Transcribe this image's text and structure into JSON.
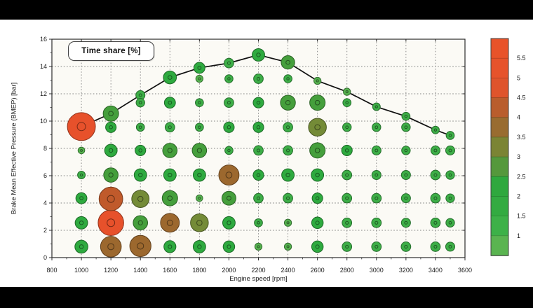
{
  "page": {
    "top_bar_color": "#000000",
    "bottom_bar_color": "#000000",
    "background": "#ffffff"
  },
  "chart_data": {
    "type": "scatter",
    "subtype": "bubble-map",
    "legend_label": "Time share [%]",
    "xlabel": "Engine speed [rpm]",
    "ylabel": "Brake Mean Effective Pressure (BMEP) [bar]",
    "xlim": [
      800,
      3600
    ],
    "ylim": [
      0,
      16
    ],
    "x_ticks": [
      800,
      1000,
      1200,
      1400,
      1600,
      1800,
      2000,
      2200,
      2400,
      2600,
      2800,
      3000,
      3200,
      3400,
      3600
    ],
    "y_ticks": [
      0,
      2,
      4,
      6,
      8,
      10,
      12,
      14,
      16
    ],
    "x_minor_step": 100,
    "y_minor_step": 1,
    "grid": {
      "style": "dotted",
      "color": "#818181"
    },
    "plot_bg": "#fbfaf5",
    "axis_color": "#2b2b2b",
    "value_unit": "%",
    "color_scale": [
      {
        "max": 1.2,
        "color": "#56b24f"
      },
      {
        "max": 1.8,
        "color": "#3dae47"
      },
      {
        "max": 2.4,
        "color": "#2eaa3f"
      },
      {
        "max": 2.95,
        "color": "#459f3c"
      },
      {
        "max": 3.5,
        "color": "#748b37"
      },
      {
        "max": 4.2,
        "color": "#9c682e"
      },
      {
        "max": 4.8,
        "color": "#c05a2b"
      },
      {
        "max": 99,
        "color": "#e7512b"
      }
    ],
    "full_load_line": {
      "color": "#101010",
      "points": [
        [
          1000,
          9.6
        ],
        [
          1200,
          10.55
        ],
        [
          1400,
          11.9
        ],
        [
          1600,
          13.2
        ],
        [
          1800,
          13.9
        ],
        [
          2000,
          14.25
        ],
        [
          2200,
          14.85
        ],
        [
          2400,
          14.3
        ],
        [
          2600,
          12.95
        ],
        [
          2800,
          12.15
        ],
        [
          3000,
          11.05
        ],
        [
          3200,
          10.35
        ],
        [
          3400,
          9.35
        ],
        [
          3500,
          8.95
        ]
      ]
    },
    "bubbles": [
      [
        1000,
        0.8,
        2.4
      ],
      [
        1000,
        2.55,
        2.3
      ],
      [
        1000,
        4.35,
        2.0
      ],
      [
        1000,
        6.05,
        1.3
      ],
      [
        1000,
        7.85,
        1.1
      ],
      [
        1000,
        9.6,
        5.5
      ],
      [
        1200,
        0.8,
        4.0
      ],
      [
        1200,
        2.55,
        5.0
      ],
      [
        1200,
        4.3,
        4.6
      ],
      [
        1200,
        6.05,
        2.7
      ],
      [
        1200,
        7.85,
        2.3
      ],
      [
        1200,
        9.55,
        1.9
      ],
      [
        1200,
        10.55,
        2.9
      ],
      [
        1400,
        0.85,
        4.1
      ],
      [
        1400,
        2.55,
        2.7
      ],
      [
        1400,
        4.3,
        3.3
      ],
      [
        1400,
        6.05,
        2.3
      ],
      [
        1400,
        7.85,
        1.9
      ],
      [
        1400,
        9.55,
        1.4
      ],
      [
        1400,
        11.35,
        1.5
      ],
      [
        1400,
        11.9,
        1.6
      ],
      [
        1600,
        0.8,
        2.2
      ],
      [
        1600,
        2.55,
        3.6
      ],
      [
        1600,
        4.35,
        2.9
      ],
      [
        1600,
        6.05,
        2.3
      ],
      [
        1600,
        7.85,
        2.7
      ],
      [
        1600,
        9.55,
        1.7
      ],
      [
        1600,
        11.35,
        2.0
      ],
      [
        1600,
        13.2,
        2.4
      ],
      [
        1800,
        0.8,
        2.3
      ],
      [
        1800,
        2.55,
        3.4
      ],
      [
        1800,
        4.35,
        1.1
      ],
      [
        1800,
        6.05,
        2.3
      ],
      [
        1800,
        7.85,
        2.7
      ],
      [
        1800,
        9.55,
        1.4
      ],
      [
        1800,
        11.35,
        1.4
      ],
      [
        1800,
        13.1,
        1.2
      ],
      [
        1800,
        13.9,
        2.0
      ],
      [
        2000,
        0.8,
        2.1
      ],
      [
        2000,
        2.55,
        2.3
      ],
      [
        2000,
        4.35,
        2.6
      ],
      [
        2000,
        6.05,
        3.9
      ],
      [
        2000,
        7.85,
        1.4
      ],
      [
        2000,
        9.55,
        1.9
      ],
      [
        2000,
        11.35,
        1.7
      ],
      [
        2000,
        13.1,
        1.4
      ],
      [
        2000,
        14.25,
        1.7
      ],
      [
        2200,
        0.8,
        1.2
      ],
      [
        2200,
        2.55,
        1.4
      ],
      [
        2200,
        4.35,
        1.7
      ],
      [
        2200,
        6.05,
        1.9
      ],
      [
        2200,
        7.85,
        1.7
      ],
      [
        2200,
        9.55,
        1.9
      ],
      [
        2200,
        11.35,
        1.9
      ],
      [
        2200,
        13.1,
        1.7
      ],
      [
        2200,
        14.85,
        2.3
      ],
      [
        2400,
        0.8,
        1.2
      ],
      [
        2400,
        2.55,
        1.2
      ],
      [
        2400,
        4.35,
        1.7
      ],
      [
        2400,
        6.05,
        2.3
      ],
      [
        2400,
        7.85,
        1.7
      ],
      [
        2400,
        9.55,
        1.7
      ],
      [
        2400,
        11.35,
        2.8
      ],
      [
        2400,
        13.1,
        1.4
      ],
      [
        2400,
        14.3,
        2.5
      ],
      [
        2600,
        0.8,
        2.1
      ],
      [
        2600,
        2.55,
        2.1
      ],
      [
        2600,
        4.35,
        1.9
      ],
      [
        2600,
        6.05,
        2.3
      ],
      [
        2600,
        7.85,
        2.9
      ],
      [
        2600,
        9.55,
        3.4
      ],
      [
        2600,
        11.35,
        2.9
      ],
      [
        2600,
        12.95,
        1.2
      ],
      [
        2800,
        0.8,
        1.7
      ],
      [
        2800,
        2.55,
        1.7
      ],
      [
        2800,
        4.35,
        1.7
      ],
      [
        2800,
        6.05,
        1.7
      ],
      [
        2800,
        7.85,
        1.9
      ],
      [
        2800,
        9.55,
        1.5
      ],
      [
        2800,
        11.35,
        1.4
      ],
      [
        2800,
        12.15,
        1.2
      ],
      [
        3000,
        0.8,
        1.7
      ],
      [
        3000,
        2.55,
        1.7
      ],
      [
        3000,
        4.35,
        1.7
      ],
      [
        3000,
        6.05,
        1.6
      ],
      [
        3000,
        7.85,
        1.6
      ],
      [
        3000,
        9.55,
        1.5
      ],
      [
        3000,
        11.05,
        1.3
      ],
      [
        3200,
        0.8,
        1.7
      ],
      [
        3200,
        2.55,
        1.6
      ],
      [
        3200,
        4.35,
        1.6
      ],
      [
        3200,
        6.05,
        1.6
      ],
      [
        3200,
        7.85,
        1.5
      ],
      [
        3200,
        9.55,
        1.5
      ],
      [
        3200,
        10.35,
        1.4
      ],
      [
        3400,
        0.8,
        1.7
      ],
      [
        3400,
        2.55,
        1.7
      ],
      [
        3400,
        4.35,
        1.7
      ],
      [
        3400,
        6.05,
        1.7
      ],
      [
        3400,
        7.85,
        1.6
      ],
      [
        3400,
        9.35,
        1.3
      ],
      [
        3500,
        0.8,
        1.6
      ],
      [
        3500,
        2.55,
        1.5
      ],
      [
        3500,
        4.35,
        1.5
      ],
      [
        3500,
        6.05,
        1.5
      ],
      [
        3500,
        7.85,
        1.6
      ],
      [
        3500,
        8.95,
        1.4
      ]
    ],
    "colorbar": {
      "range": [
        0.5,
        6
      ],
      "tick_values": [
        5.5,
        5,
        4.5,
        4,
        3.5,
        3,
        2.5,
        2,
        1.5,
        1
      ],
      "segment_colors_top_to_bottom": [
        "#e8532a",
        "#e6532b",
        "#df542c",
        "#b95d2d",
        "#996c30",
        "#7b8434",
        "#55983c",
        "#2fa83e",
        "#33ab41",
        "#3db148",
        "#5ab450"
      ]
    }
  }
}
